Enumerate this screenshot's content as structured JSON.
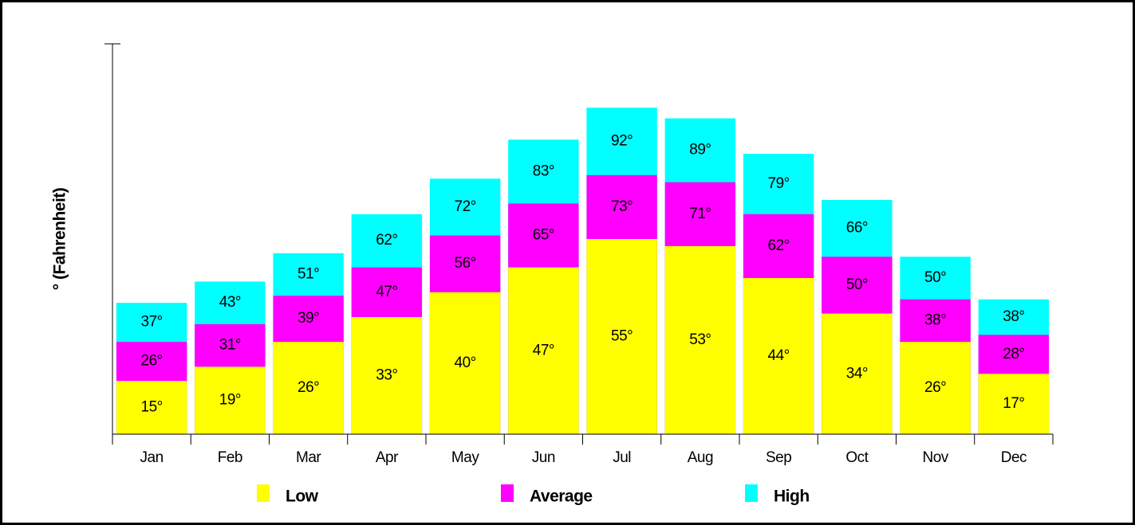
{
  "chart_data": {
    "type": "bar",
    "y_label": "° (Fahrenheit)",
    "categories": [
      "Jan",
      "Feb",
      "Mar",
      "Apr",
      "May",
      "Jun",
      "Jul",
      "Aug",
      "Sep",
      "Oct",
      "Nov",
      "Dec"
    ],
    "series": [
      {
        "name": "Low",
        "color": "#ffff00",
        "values": [
          15,
          19,
          26,
          33,
          40,
          47,
          55,
          53,
          44,
          34,
          26,
          17
        ],
        "value_labels": [
          "15°",
          "19°",
          "26°",
          "33°",
          "40°",
          "47°",
          "55°",
          "53°",
          "44°",
          "34°",
          "26°",
          "17°"
        ]
      },
      {
        "name": "Average",
        "color": "#ff00ff",
        "values": [
          26,
          31,
          39,
          47,
          56,
          65,
          73,
          71,
          62,
          50,
          38,
          28
        ],
        "value_labels": [
          "26°",
          "31°",
          "39°",
          "47°",
          "56°",
          "65°",
          "73°",
          "71°",
          "62°",
          "50°",
          "38°",
          "28°"
        ]
      },
      {
        "name": "High",
        "color": "#00ffff",
        "values": [
          37,
          43,
          51,
          62,
          72,
          83,
          92,
          89,
          79,
          66,
          50,
          38
        ],
        "value_labels": [
          "37°",
          "43°",
          "51°",
          "62°",
          "72°",
          "83°",
          "92°",
          "89°",
          "79°",
          "66°",
          "50°",
          "38°"
        ]
      }
    ],
    "ylim": [
      0,
      110
    ],
    "legend": "bottom"
  }
}
